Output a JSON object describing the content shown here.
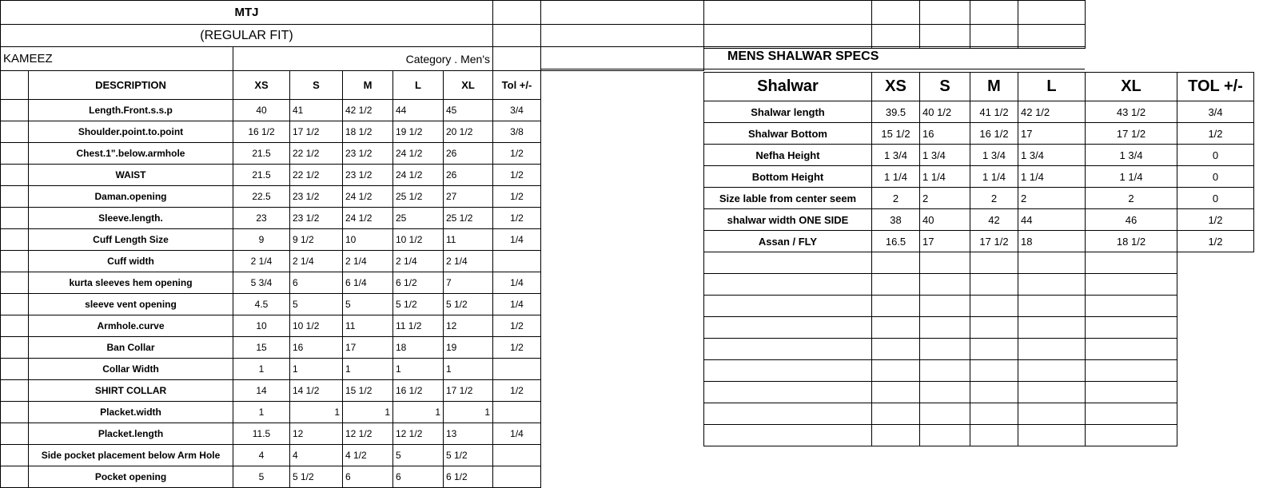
{
  "kameez": {
    "title": "MTJ",
    "fit": "(REGULAR FIT)",
    "section": "KAMEEZ",
    "category": "Category .  Men's",
    "headers": [
      "DESCRIPTION",
      "XS",
      "S",
      "M",
      "L",
      "XL",
      "Tol +/-"
    ],
    "rows": [
      [
        "Length.Front.s.s.p",
        "40",
        "41",
        "42 1/2",
        "44",
        "45",
        "3/4"
      ],
      [
        "Shoulder.point.to.point",
        "16 1/2",
        "17 1/2",
        "18 1/2",
        "19 1/2",
        "20 1/2",
        "3/8"
      ],
      [
        "Chest.1\".below.armhole",
        "21.5",
        "22 1/2",
        "23 1/2",
        "24 1/2",
        "26",
        "1/2"
      ],
      [
        "WAIST",
        "21.5",
        "22 1/2",
        "23 1/2",
        "24 1/2",
        "26",
        "1/2"
      ],
      [
        "Daman.opening",
        "22.5",
        "23 1/2",
        "24 1/2",
        "25 1/2",
        "27",
        "1/2"
      ],
      [
        "Sleeve.length.",
        "23",
        "23 1/2",
        "24 1/2",
        "25",
        "25 1/2",
        "1/2"
      ],
      [
        "Cuff Length Size",
        "9",
        "9 1/2",
        "10",
        "10 1/2",
        "11",
        "1/4"
      ],
      [
        "Cuff width",
        "2 1/4",
        "2 1/4",
        "2 1/4",
        "2 1/4",
        "2 1/4",
        ""
      ],
      [
        "kurta sleeves hem opening",
        "5 3/4",
        "6",
        "6 1/4",
        "6 1/2",
        "7",
        "1/4"
      ],
      [
        "sleeve vent opening",
        "4.5",
        "5",
        "5",
        "5 1/2",
        "5 1/2",
        "1/4"
      ],
      [
        "Armhole.curve",
        "10",
        "10 1/2",
        "11",
        "11 1/2",
        "12",
        "1/2"
      ],
      [
        "Ban Collar",
        "15",
        "16",
        "17",
        "18",
        "19",
        "1/2"
      ],
      [
        "Collar Width",
        "1",
        "1",
        "1",
        "1",
        "1",
        ""
      ],
      [
        "SHIRT COLLAR",
        "14",
        "14 1/2",
        "15 1/2",
        "16 1/2",
        "17 1/2",
        "1/2"
      ],
      [
        "Placket.width",
        "1",
        "1",
        "1",
        "1",
        "1",
        ""
      ],
      [
        "Placket.length",
        "11.5",
        "12",
        "12 1/2",
        "12 1/2",
        "13",
        "1/4"
      ],
      [
        "Side pocket placement below Arm Hole",
        "4",
        "4",
        "4 1/2",
        "5",
        "5 1/2",
        ""
      ],
      [
        "Pocket opening",
        "5",
        "5 1/2",
        "6",
        "6",
        "6 1/2",
        ""
      ]
    ]
  },
  "shalwar": {
    "title": "MENS SHALWAR SPECS",
    "headers": [
      "Shalwar",
      "XS",
      "S",
      "M",
      "L",
      "XL",
      "TOL +/-"
    ],
    "rows": [
      [
        "Shalwar length",
        "39.5",
        "40 1/2",
        "41 1/2",
        "42 1/2",
        "43 1/2",
        "3/4"
      ],
      [
        "Shalwar Bottom",
        "15 1/2",
        "16",
        "16 1/2",
        "17",
        "17 1/2",
        "1/2"
      ],
      [
        "Nefha Height",
        "1 3/4",
        "1 3/4",
        "1 3/4",
        "1 3/4",
        "1 3/4",
        "0"
      ],
      [
        "Bottom Height",
        "1 1/4",
        "1 1/4",
        "1 1/4",
        "1 1/4",
        "1 1/4",
        "0"
      ],
      [
        "Size lable from center seem",
        "2",
        "2",
        "2",
        "2",
        "2",
        "0"
      ],
      [
        "shalwar width ONE SIDE",
        "38",
        "40",
        "42",
        "44",
        "46",
        "1/2"
      ],
      [
        "Assan / FLY",
        "16.5",
        "17",
        "17 1/2",
        "18",
        "18 1/2",
        "1/2"
      ]
    ]
  }
}
